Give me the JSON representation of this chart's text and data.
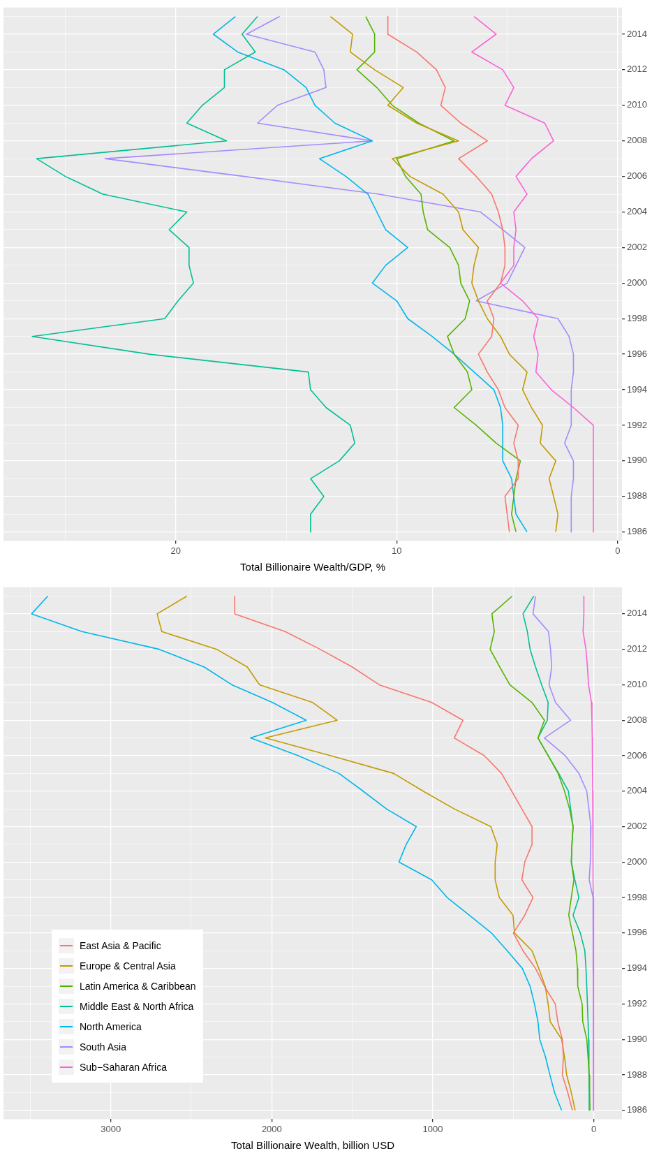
{
  "chart_data": [
    {
      "type": "line",
      "orientation": "horizontal",
      "xlabel": "Total Billionaire Wealth/GDP, %",
      "grid": true,
      "categories": [
        null,
        "2014",
        null,
        "2012",
        null,
        "2010",
        null,
        "2008",
        null,
        "2006",
        null,
        "2004",
        null,
        "2002",
        null,
        "2000",
        null,
        "1998",
        null,
        "1996",
        null,
        "1994",
        null,
        "1992",
        null,
        "1990",
        null,
        "1988",
        null,
        "1986"
      ],
      "xlim": [
        27.8,
        -0.2
      ],
      "xticks": [
        0,
        {
          "value": 5,
          "label": null
        },
        10,
        {
          "value": 15,
          "label": null
        },
        20,
        {
          "value": 25,
          "label": null
        }
      ],
      "series": [
        {
          "color": "#f8766d",
          "values": [
            10.4,
            10.4,
            9.1,
            8.2,
            7.8,
            8.0,
            7.1,
            5.9,
            7.2,
            6.4,
            5.7,
            5.4,
            5.2,
            5.1,
            5.1,
            5.3,
            5.9,
            5.6,
            5.7,
            6.3,
            5.9,
            5.4,
            5.1,
            4.5,
            4.7,
            4.5,
            4.5,
            5.1,
            5.0,
            4.9
          ]
        },
        {
          "color": "#c49a00",
          "values": [
            13.0,
            12.0,
            12.1,
            11.0,
            9.7,
            10.4,
            9.1,
            7.2,
            10.2,
            9.4,
            7.9,
            7.2,
            7.0,
            6.3,
            6.5,
            6.6,
            6.3,
            5.9,
            5.3,
            4.9,
            4.1,
            4.3,
            3.9,
            3.4,
            3.5,
            2.8,
            3.1,
            2.9,
            2.7,
            2.8
          ]
        },
        {
          "color": "#53b400",
          "values": [
            11.4,
            11.0,
            11.0,
            11.8,
            10.9,
            10.2,
            9.0,
            7.4,
            10.0,
            9.6,
            8.9,
            8.8,
            8.6,
            7.6,
            7.2,
            7.1,
            6.7,
            6.9,
            7.7,
            7.4,
            6.8,
            6.6,
            7.4,
            6.4,
            5.5,
            4.4,
            4.6,
            4.7,
            4.8,
            4.6
          ]
        },
        {
          "color": "#00c094",
          "values": [
            16.3,
            17.0,
            16.4,
            17.8,
            17.8,
            18.8,
            19.5,
            17.7,
            26.3,
            25.0,
            23.3,
            19.5,
            20.3,
            19.4,
            19.4,
            19.2,
            19.9,
            20.5,
            26.5,
            21.2,
            14.0,
            13.9,
            13.2,
            12.1,
            11.9,
            12.6,
            13.9,
            13.3,
            13.9,
            13.9
          ]
        },
        {
          "color": "#00b6eb",
          "values": [
            17.3,
            18.3,
            17.2,
            15.1,
            14.1,
            13.7,
            12.8,
            11.1,
            13.5,
            12.3,
            11.3,
            10.9,
            10.5,
            9.5,
            10.5,
            11.1,
            10.0,
            9.5,
            8.4,
            7.4,
            6.5,
            5.6,
            5.3,
            5.2,
            5.2,
            5.2,
            4.8,
            4.7,
            4.6,
            4.1
          ]
        },
        {
          "color": "#a58aff",
          "values": [
            15.3,
            16.8,
            13.7,
            13.3,
            13.2,
            15.4,
            16.3,
            11.1,
            23.2,
            16.9,
            10.8,
            6.2,
            5.2,
            4.2,
            4.6,
            5.0,
            6.4,
            2.7,
            2.2,
            2.0,
            2.0,
            2.1,
            2.1,
            2.1,
            2.4,
            2.0,
            2.0,
            2.1,
            2.1,
            2.1
          ]
        },
        {
          "color": "#fb61d7",
          "values": [
            6.5,
            5.5,
            6.6,
            5.2,
            4.7,
            5.1,
            3.3,
            2.9,
            3.9,
            4.6,
            4.1,
            4.7,
            4.6,
            4.7,
            4.7,
            5.3,
            4.3,
            3.6,
            3.8,
            3.6,
            3.7,
            3.0,
            2.0,
            1.1,
            1.1,
            1.1,
            1.1,
            1.1,
            1.1,
            1.1
          ]
        }
      ]
    },
    {
      "type": "line",
      "orientation": "horizontal",
      "xlabel": "Total Billionaire Wealth, billion USD",
      "grid": true,
      "legend": "bottom left",
      "categories": [
        null,
        "2014",
        null,
        "2012",
        null,
        "2010",
        null,
        "2008",
        null,
        "2006",
        null,
        "2004",
        null,
        "2002",
        null,
        "2000",
        null,
        "1998",
        null,
        "1996",
        null,
        "1994",
        null,
        "1992",
        null,
        "1990",
        null,
        "1988",
        null,
        "1986"
      ],
      "xlim": [
        3666,
        -175
      ],
      "xticks": [
        0,
        {
          "value": 500,
          "label": null
        },
        1000,
        {
          "value": 1500,
          "label": null
        },
        2000,
        {
          "value": 2500,
          "label": null
        },
        3000,
        {
          "value": 3500,
          "label": null
        }
      ],
      "series": [
        {
          "name": "East Asia & Pacific",
          "color": "#f8766d",
          "values": [
            2230,
            2230,
            1917,
            1700,
            1500,
            1333,
            1007,
            813,
            867,
            680,
            573,
            510,
            447,
            384,
            384,
            429,
            447,
            378,
            429,
            500,
            440,
            362,
            307,
            240,
            224,
            196,
            189,
            196,
            162,
            133
          ]
        },
        {
          "name": "Europe & Central Asia",
          "color": "#c49a00",
          "values": [
            2527,
            2712,
            2683,
            2342,
            2152,
            2076,
            1746,
            1594,
            2040,
            1634,
            1243,
            1060,
            867,
            640,
            600,
            613,
            613,
            587,
            502,
            493,
            384,
            342,
            302,
            284,
            271,
            200,
            182,
            169,
            140,
            116
          ]
        },
        {
          "name": "Latin America & Caribbean",
          "color": "#53b400",
          "values": [
            507,
            633,
            618,
            644,
            584,
            522,
            384,
            307,
            347,
            284,
            222,
            182,
            151,
            129,
            136,
            140,
            124,
            140,
            156,
            133,
            111,
            102,
            100,
            73,
            69,
            44,
            36,
            29,
            26,
            24
          ]
        },
        {
          "name": "Middle East & North Africa",
          "color": "#00c094",
          "values": [
            373,
            440,
            413,
            396,
            362,
            324,
            284,
            289,
            347,
            284,
            218,
            158,
            144,
            129,
            136,
            140,
            118,
            93,
            129,
            84,
            56,
            49,
            44,
            40,
            36,
            33,
            31,
            30,
            29,
            29
          ]
        },
        {
          "name": "North America",
          "color": "#00b6eb",
          "values": [
            3391,
            3491,
            3179,
            2699,
            2420,
            2248,
            1996,
            1786,
            2132,
            1835,
            1583,
            1433,
            1288,
            1103,
            1165,
            1210,
            1007,
            911,
            773,
            636,
            538,
            444,
            396,
            369,
            347,
            336,
            300,
            273,
            244,
            200
          ]
        },
        {
          "name": "South Asia",
          "color": "#a58aff",
          "values": [
            362,
            378,
            282,
            269,
            262,
            278,
            238,
            144,
            307,
            178,
            93,
            44,
            31,
            18,
            20,
            22,
            29,
            5,
            5,
            5,
            4,
            4,
            3,
            3,
            3,
            2,
            2,
            2,
            2,
            2
          ]
        },
        {
          "name": "Sub−Saharan Africa",
          "color": "#fb61d7",
          "values": [
            62,
            62,
            67,
            49,
            40,
            33,
            15,
            12,
            10,
            9,
            8,
            7,
            6,
            5,
            5,
            4,
            4,
            3,
            2,
            2,
            2,
            2,
            2,
            1,
            1,
            1,
            1,
            1,
            1,
            1
          ]
        }
      ]
    }
  ]
}
